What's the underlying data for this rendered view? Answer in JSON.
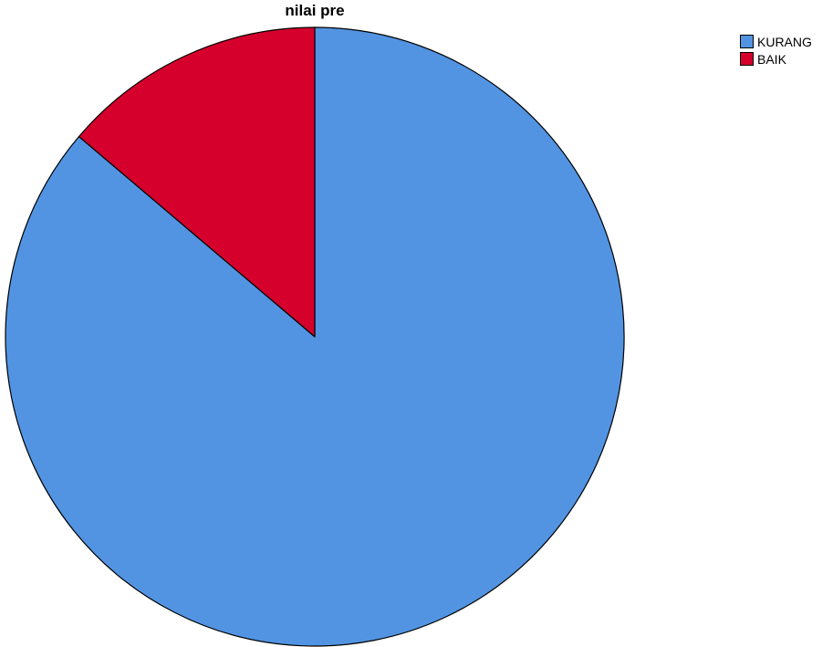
{
  "chart_data": {
    "type": "pie",
    "title": "nilai pre",
    "categories": [
      "KURANG",
      "BAIK"
    ],
    "values": [
      86.2,
      13.8
    ],
    "colors": [
      "#5294e2",
      "#d5002c"
    ],
    "start_angle_deg": 0,
    "direction": "clockwise",
    "legend_position": "top-right",
    "slice_labels": "none"
  }
}
